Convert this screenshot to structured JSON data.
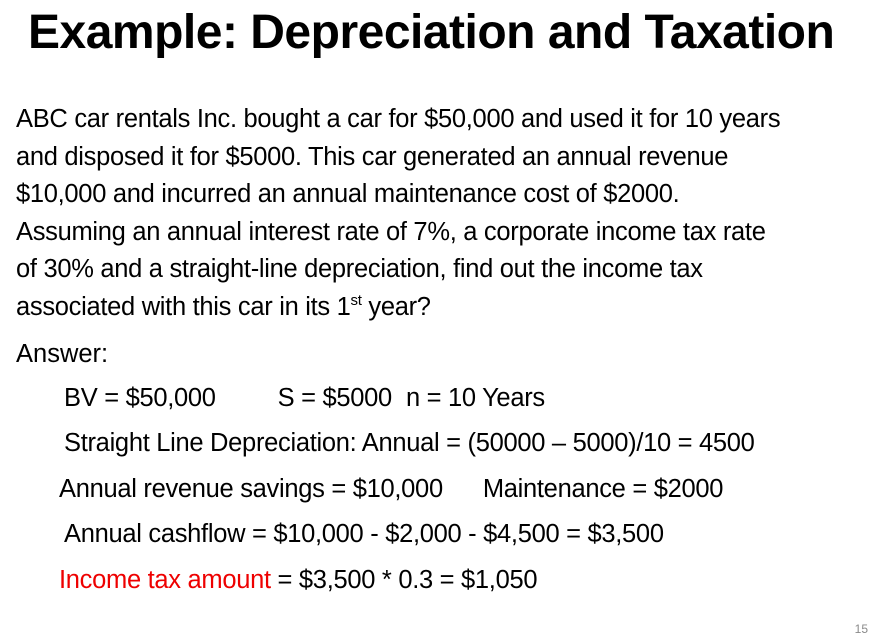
{
  "slide": {
    "title": "Example: Depreciation and Taxation",
    "problem": {
      "line1": "ABC car rentals Inc. bought a car for $50,000 and used it for 10 years",
      "line2": "and disposed it for $5000. This car generated an annual revenue",
      "line3": "$10,000 and incurred an annual maintenance cost of $2000.",
      "line4": "Assuming an annual interest rate of 7%, a corporate income tax rate",
      "line5": "of 30% and a straight-line depreciation, find out the income tax",
      "line6_before": "associated with this car in its 1",
      "line6_sup": "st",
      "line6_after": " year?"
    },
    "answer": {
      "label": "Answer:",
      "bv": "BV = $50,000",
      "salvage": "S = $5000",
      "years": "n = 10 Years",
      "depreciation": "Straight Line Depreciation: Annual = (50000 – 5000)/10 = 4500",
      "revenue": "Annual revenue savings = $10,000",
      "maintenance": "Maintenance = $2000",
      "cashflow": "Annual cashflow = $10,000 - $2,000 - $4,500 = $3,500",
      "tax_label": "Income tax amount",
      "tax_calc": " = $3,500 * 0.3 = $1,050"
    },
    "page_number": "15",
    "colors": {
      "text": "#000000",
      "highlight": "#ee0000",
      "page_number": "#8a8a8a"
    }
  }
}
